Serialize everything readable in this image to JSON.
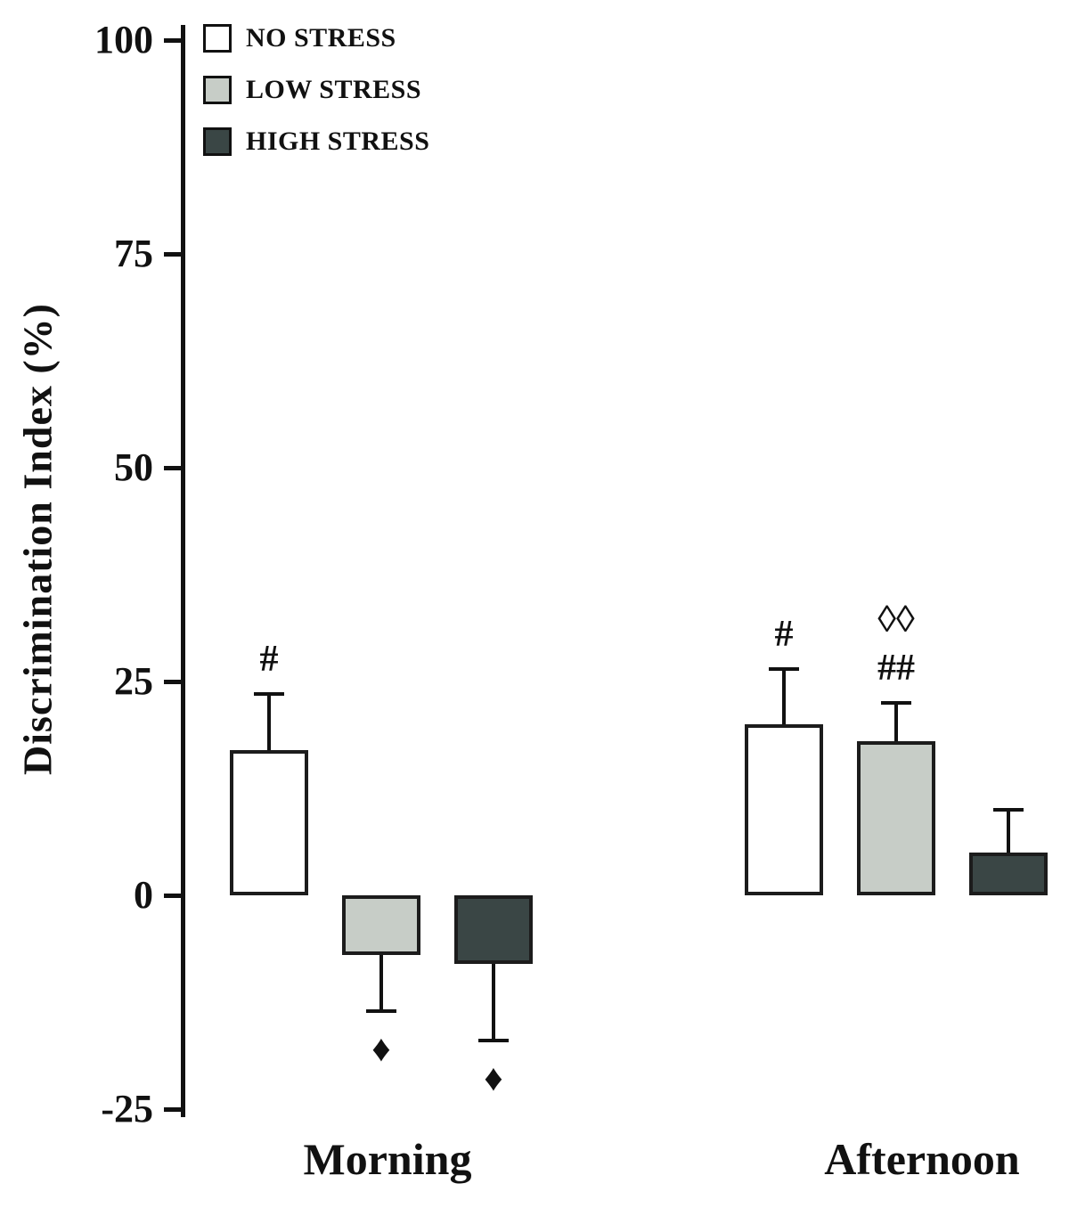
{
  "chart_data": {
    "type": "bar",
    "title": "",
    "xlabel": "",
    "ylabel": "Discrimination Index (%)",
    "ylim": [
      -25,
      100
    ],
    "yticks": [
      100,
      75,
      50,
      25,
      0,
      -25
    ],
    "grid": false,
    "legend_position": "top-left",
    "categories": [
      "Morning",
      "Afternoon"
    ],
    "series": [
      {
        "name": "NO STRESS",
        "color": "#ffffff",
        "values": [
          17,
          20
        ],
        "errors": [
          6.5,
          6.5
        ]
      },
      {
        "name": "LOW STRESS",
        "color": "#c7cdc7",
        "values": [
          -7,
          18
        ],
        "errors": [
          6.5,
          4.5
        ]
      },
      {
        "name": "HIGH STRESS",
        "color": "#3a4645",
        "values": [
          -8,
          5
        ],
        "errors": [
          9,
          5
        ]
      }
    ],
    "annotations": [
      {
        "category": "Morning",
        "series": "NO STRESS",
        "lines": [
          "#"
        ],
        "position": "above"
      },
      {
        "category": "Morning",
        "series": "LOW STRESS",
        "lines": [
          "♦"
        ],
        "position": "below"
      },
      {
        "category": "Morning",
        "series": "HIGH STRESS",
        "lines": [
          "♦"
        ],
        "position": "below"
      },
      {
        "category": "Afternoon",
        "series": "NO STRESS",
        "lines": [
          "#"
        ],
        "position": "above"
      },
      {
        "category": "Afternoon",
        "series": "LOW STRESS",
        "lines": [
          "◊◊",
          "##"
        ],
        "position": "above"
      }
    ]
  },
  "colors": {
    "axis": "#111111",
    "bar_border": "#1c1c1c",
    "background": "#ffffff"
  }
}
